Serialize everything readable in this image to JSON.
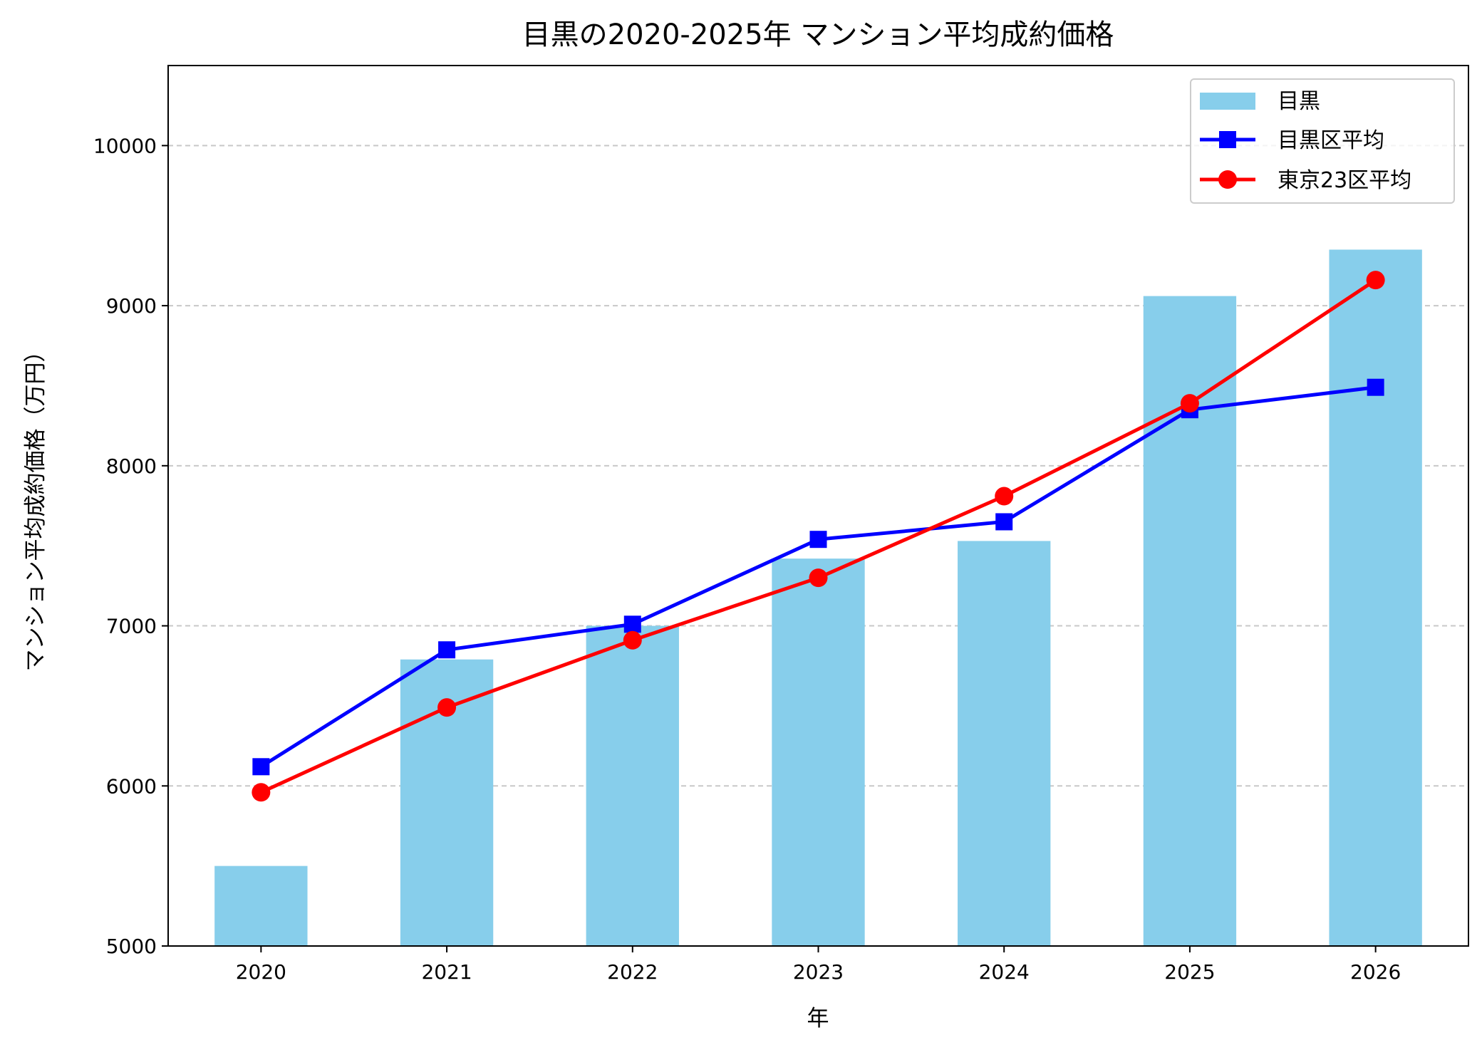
{
  "chart_data": {
    "type": "bar+line",
    "title": "目黒の2020-2025年 マンション平均成約価格",
    "xlabel": "年",
    "ylabel": "マンション平均成約価格（万円）",
    "categories": [
      "2020",
      "2021",
      "2022",
      "2023",
      "2024",
      "2025",
      "2026"
    ],
    "xlim": [
      2019.5,
      2026.5
    ],
    "ylim": [
      5000,
      10500
    ],
    "yticks": [
      5000,
      6000,
      7000,
      8000,
      9000,
      10000
    ],
    "grid": "y-dashed",
    "legend_placement": "top-right",
    "series": [
      {
        "name": "目黒",
        "kind": "bar",
        "color": "#87CEEB",
        "values": [
          5500,
          6790,
          7000,
          7420,
          7530,
          9060,
          9350
        ]
      },
      {
        "name": "目黒区平均",
        "kind": "line",
        "marker": "square",
        "color": "#0000FF",
        "values": [
          6120,
          6850,
          7010,
          7540,
          7650,
          8350,
          8490
        ]
      },
      {
        "name": "東京23区平均",
        "kind": "line",
        "marker": "circle",
        "color": "#FF0000",
        "values": [
          5960,
          6490,
          6910,
          7300,
          7810,
          8390,
          9160
        ]
      }
    ]
  }
}
